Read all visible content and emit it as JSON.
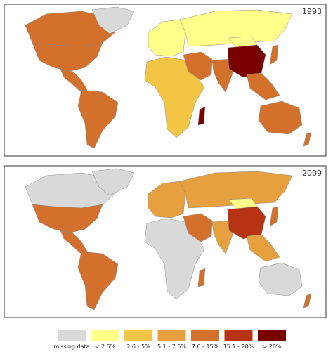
{
  "maps": [
    {
      "year": "1993"
    },
    {
      "year": "2009"
    }
  ],
  "legend": [
    {
      "label": "missing data",
      "color": "#d9d9d9"
    },
    {
      "label": "< 2.5%",
      "color": "#ffff8a"
    },
    {
      "label": "2.6 - 5%",
      "color": "#f2c545"
    },
    {
      "label": "5.1 - 7.5%",
      "color": "#e6a040"
    },
    {
      "label": "7.6 - 15%",
      "color": "#d2702c"
    },
    {
      "label": "15.1 - 20%",
      "color": "#b83214"
    },
    {
      "label": "> 20%",
      "color": "#780000"
    }
  ]
}
